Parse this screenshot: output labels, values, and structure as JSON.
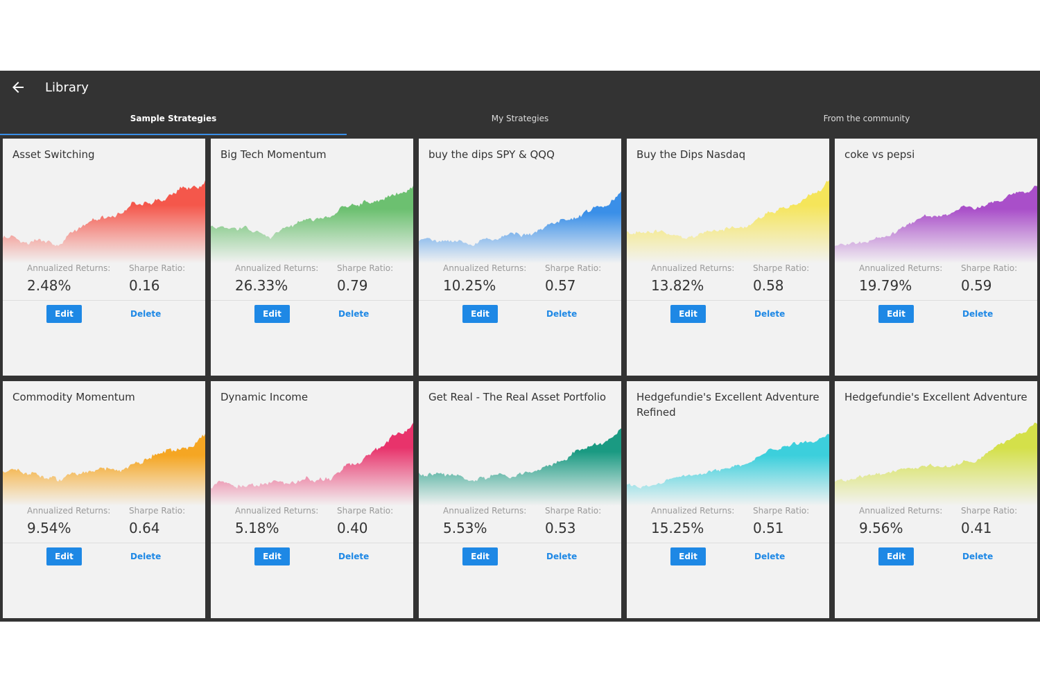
{
  "header": {
    "title": "Library"
  },
  "tabs": [
    "Sample Strategies",
    "My Strategies",
    "From the community"
  ],
  "cards": [
    {
      "name": "Asset Switching",
      "returns_label": "Annualized Returns:",
      "returns": "2.48%",
      "sharpe_label": "Sharpe Ratio:",
      "sharpe": "0.16",
      "edit": "Edit",
      "delete": "Delete",
      "color": "#f4574b"
    },
    {
      "name": "Big Tech Momentum",
      "returns_label": "Annualized Returns:",
      "returns": "26.33%",
      "sharpe_label": "Sharpe Ratio:",
      "sharpe": "0.79",
      "edit": "Edit",
      "delete": "Delete",
      "color": "#6cc070"
    },
    {
      "name": "buy the dips SPY & QQQ",
      "returns_label": "Annualized Returns:",
      "returns": "10.25%",
      "sharpe_label": "Sharpe Ratio:",
      "sharpe": "0.57",
      "edit": "Edit",
      "delete": "Delete",
      "color": "#3a8fe8"
    },
    {
      "name": "Buy the Dips Nasdaq",
      "returns_label": "Annualized Returns:",
      "returns": "13.82%",
      "sharpe_label": "Sharpe Ratio:",
      "sharpe": "0.58",
      "edit": "Edit",
      "delete": "Delete",
      "color": "#f5e55a"
    },
    {
      "name": "coke vs pepsi",
      "returns_label": "Annualized Returns:",
      "returns": "19.79%",
      "sharpe_label": "Sharpe Ratio:",
      "sharpe": "0.59",
      "edit": "Edit",
      "delete": "Delete",
      "color": "#a94fc9"
    },
    {
      "name": "Commodity Momentum",
      "returns_label": "Annualized Returns:",
      "returns": "9.54%",
      "sharpe_label": "Sharpe Ratio:",
      "sharpe": "0.64",
      "edit": "Edit",
      "delete": "Delete",
      "color": "#f5a623"
    },
    {
      "name": "Dynamic Income",
      "returns_label": "Annualized Returns:",
      "returns": "5.18%",
      "sharpe_label": "Sharpe Ratio:",
      "sharpe": "0.40",
      "edit": "Edit",
      "delete": "Delete",
      "color": "#e8336b"
    },
    {
      "name": "Get Real - The Real Asset Portfolio",
      "returns_label": "Annualized Returns:",
      "returns": "5.53%",
      "sharpe_label": "Sharpe Ratio:",
      "sharpe": "0.53",
      "edit": "Edit",
      "delete": "Delete",
      "color": "#1a9a82"
    },
    {
      "name": "Hedgefundie's Excellent Adventure Refined",
      "returns_label": "Annualized Returns:",
      "returns": "15.25%",
      "sharpe_label": "Sharpe Ratio:",
      "sharpe": "0.51",
      "edit": "Edit",
      "delete": "Delete",
      "color": "#3ccfdc"
    },
    {
      "name": "Hedgefundie's Excellent Adventure",
      "returns_label": "Annualized Returns:",
      "returns": "9.56%",
      "sharpe_label": "Sharpe Ratio:",
      "sharpe": "0.41",
      "edit": "Edit",
      "delete": "Delete",
      "color": "#d4e04a"
    }
  ]
}
